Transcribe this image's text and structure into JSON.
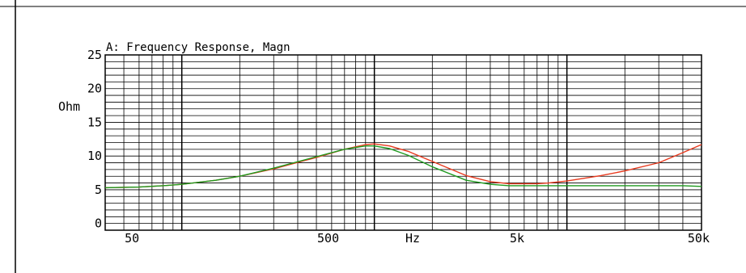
{
  "chart_data": {
    "type": "line",
    "title": "A: Frequency Response, Magn",
    "ylabel": "Ohm",
    "xlabel": "Hz",
    "x_scale": "log",
    "xlim": [
      40,
      50000
    ],
    "ylim": [
      -1,
      25
    ],
    "grid": true,
    "x_tick_labels": [
      "50",
      "500",
      "5k",
      "50k"
    ],
    "y_tick_labels": [
      "0",
      "5",
      "10",
      "15",
      "20",
      "25"
    ],
    "colors": {
      "series1": "#e83a1e",
      "series2": "#1e9a1e",
      "grid": "#000000",
      "background": "#ffffff"
    },
    "series": [
      {
        "x": [
          40,
          60,
          80,
          100,
          150,
          200,
          300,
          500,
          700,
          900,
          1000,
          1200,
          1500,
          2000,
          3000,
          4000,
          5000,
          6000,
          7000,
          8000,
          10000,
          15000,
          20000,
          30000,
          40000,
          50000
        ],
        "values": [
          5.3,
          5.4,
          5.6,
          5.8,
          6.4,
          7.0,
          8.1,
          9.8,
          11.0,
          11.7,
          11.8,
          11.5,
          10.7,
          9.2,
          7.1,
          6.2,
          5.9,
          5.9,
          5.9,
          6.0,
          6.3,
          7.1,
          7.8,
          9.0,
          10.5,
          11.7
        ]
      },
      {
        "x": [
          40,
          60,
          80,
          100,
          150,
          200,
          300,
          500,
          700,
          900,
          1000,
          1200,
          1500,
          2000,
          3000,
          4000,
          5000,
          6000,
          7000,
          8000,
          10000,
          15000,
          20000,
          30000,
          40000,
          50000
        ],
        "values": [
          5.3,
          5.4,
          5.6,
          5.8,
          6.4,
          7.0,
          8.2,
          9.9,
          11.0,
          11.5,
          11.5,
          11.1,
          10.1,
          8.4,
          6.4,
          5.8,
          5.6,
          5.6,
          5.6,
          5.6,
          5.6,
          5.6,
          5.6,
          5.6,
          5.6,
          5.5
        ]
      }
    ]
  }
}
